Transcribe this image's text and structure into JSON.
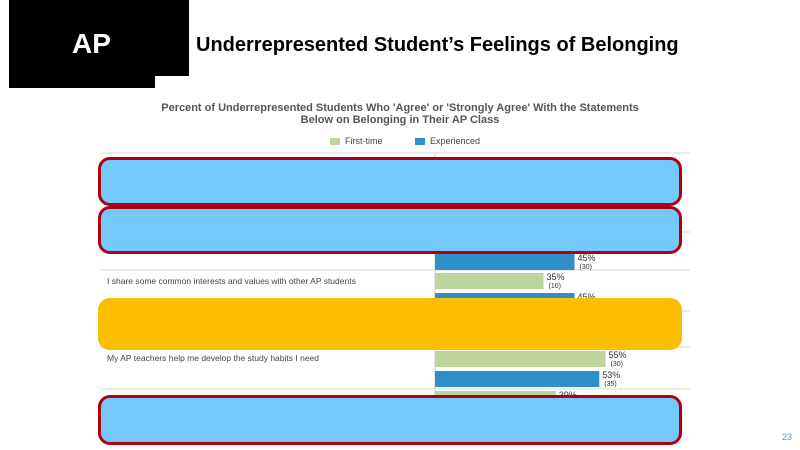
{
  "slide": {
    "logo": "AP",
    "title": "Underrepresented Student’s Feelings of Belonging",
    "page_number": "23"
  },
  "colors": {
    "first_time": "#bcd59a",
    "experienced": "#2f8fc8",
    "overlay_blue": "#73c9fe",
    "overlay_border": "#b00010",
    "overlay_gold": "#fdbd00"
  },
  "chart_data": {
    "type": "bar",
    "orientation": "horizontal",
    "title": "Percent of Underrepresented Students Who 'Agree' or 'Strongly Agree' With the Statements Below on Belonging in Their AP Class",
    "legend": [
      "First-time",
      "Experienced"
    ],
    "legend_position": "top",
    "xlim": [
      0,
      100
    ],
    "visible_bars": [
      {
        "category": "",
        "series": "Experienced",
        "value": 45,
        "value_label": "45%",
        "n_label": "(30)"
      },
      {
        "category": "I share some common interests and values with other AP students",
        "series": "First-time",
        "value": 35,
        "value_label": "35%",
        "n_label": "(10)"
      },
      {
        "category": "I share some common interests and values with other AP students",
        "series": "Experienced",
        "value": 45,
        "value_label": "45%",
        "n_label": ""
      },
      {
        "category": "My AP teachers help me develop the study habits I need",
        "series": "First-time",
        "value": 55,
        "value_label": "55%",
        "n_label": "(30)"
      },
      {
        "category": "My AP teachers help me develop the study habits I need",
        "series": "Experienced",
        "value": 53,
        "value_label": "53%",
        "n_label": "(35)"
      },
      {
        "category": "",
        "series": "First-time",
        "value": 39,
        "value_label": "39%",
        "n_label": ""
      }
    ],
    "category_labels": [
      "I share some common interests and values with other AP students",
      "My AP teachers help me develop the study habits I need"
    ]
  }
}
